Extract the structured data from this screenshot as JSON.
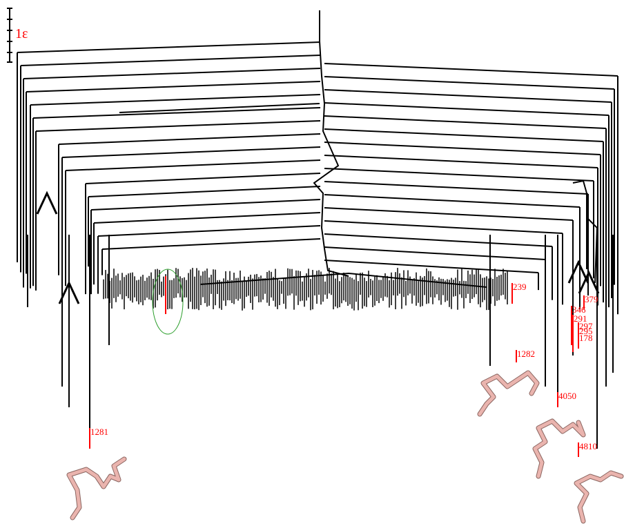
{
  "scale_label": "1ε",
  "labels": [
    "1281",
    "1282",
    "4050",
    "4810",
    "239",
    "379",
    "346",
    "291",
    "297",
    "295",
    "178"
  ]
}
